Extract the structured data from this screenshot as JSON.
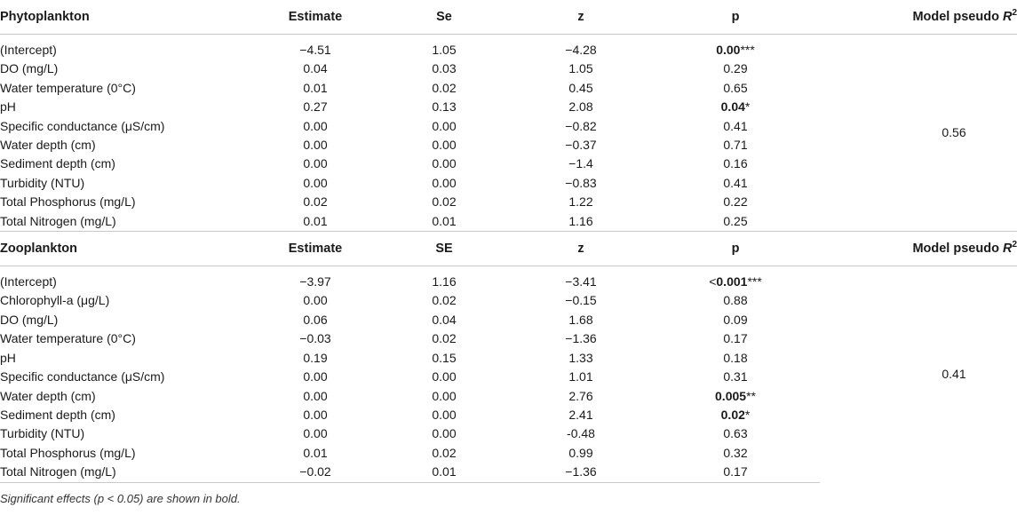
{
  "sections": [
    {
      "header": {
        "group": "Phytoplankton",
        "estimate": "Estimate",
        "se": "Se",
        "z": "z",
        "p": "p",
        "model": "Model pseudo ",
        "model_r": "R",
        "model_sup": "2"
      },
      "model_value": "0.56",
      "rows": [
        {
          "label": "(Intercept)",
          "estimate": "−4.51",
          "se": "1.05",
          "z": "−4.28",
          "p_bold": "0.00",
          "p_plain": "",
          "p_stars": "***"
        },
        {
          "label": "DO (mg/L)",
          "estimate": "0.04",
          "se": "0.03",
          "z": "1.05",
          "p_bold": "",
          "p_plain": "0.29",
          "p_stars": ""
        },
        {
          "label": "Water temperature (0°C)",
          "estimate": "0.01",
          "se": "0.02",
          "z": "0.45",
          "p_bold": "",
          "p_plain": "0.65",
          "p_stars": ""
        },
        {
          "label": "pH",
          "estimate": "0.27",
          "se": "0.13",
          "z": "2.08",
          "p_bold": "0.04",
          "p_plain": "",
          "p_stars": "*"
        },
        {
          "label": "Specific conductance (μS/cm)",
          "estimate": "0.00",
          "se": "0.00",
          "z": "−0.82",
          "p_bold": "",
          "p_plain": "0.41",
          "p_stars": ""
        },
        {
          "label": "Water depth (cm)",
          "estimate": "0.00",
          "se": "0.00",
          "z": "−0.37",
          "p_bold": "",
          "p_plain": "0.71",
          "p_stars": ""
        },
        {
          "label": "Sediment depth (cm)",
          "estimate": "0.00",
          "se": "0.00",
          "z": "−1.4",
          "p_bold": "",
          "p_plain": "0.16",
          "p_stars": ""
        },
        {
          "label": "Turbidity (NTU)",
          "estimate": "0.00",
          "se": "0.00",
          "z": "−0.83",
          "p_bold": "",
          "p_plain": "0.41",
          "p_stars": ""
        },
        {
          "label": "Total Phosphorus (mg/L)",
          "estimate": "0.02",
          "se": "0.02",
          "z": "1.22",
          "p_bold": "",
          "p_plain": "0.22",
          "p_stars": ""
        },
        {
          "label": "Total Nitrogen (mg/L)",
          "estimate": "0.01",
          "se": "0.01",
          "z": "1.16",
          "p_bold": "",
          "p_plain": "0.25",
          "p_stars": ""
        }
      ]
    },
    {
      "header": {
        "group": "Zooplankton",
        "estimate": "Estimate",
        "se": "SE",
        "z": "z",
        "p": "p",
        "model": "Model pseudo ",
        "model_r": "R",
        "model_sup": "2"
      },
      "model_value": "0.41",
      "rows": [
        {
          "label": "(Intercept)",
          "estimate": "−3.97",
          "se": "1.16",
          "z": "−3.41",
          "p_prefix": "<",
          "p_bold": "0.001",
          "p_plain": "",
          "p_stars": "***"
        },
        {
          "label": "Chlorophyll-a (μg/L)",
          "estimate": "0.00",
          "se": "0.02",
          "z": "−0.15",
          "p_bold": "",
          "p_plain": "0.88",
          "p_stars": ""
        },
        {
          "label": "DO (mg/L)",
          "estimate": "0.06",
          "se": "0.04",
          "z": "1.68",
          "p_bold": "",
          "p_plain": "0.09",
          "p_stars": ""
        },
        {
          "label": "Water temperature (0°C)",
          "estimate": "−0.03",
          "se": "0.02",
          "z": "−1.36",
          "p_bold": "",
          "p_plain": "0.17",
          "p_stars": ""
        },
        {
          "label": "pH",
          "estimate": "0.19",
          "se": "0.15",
          "z": "1.33",
          "p_bold": "",
          "p_plain": "0.18",
          "p_stars": ""
        },
        {
          "label": "Specific conductance (μS/cm)",
          "estimate": "0.00",
          "se": "0.00",
          "z": "1.01",
          "p_bold": "",
          "p_plain": "0.31",
          "p_stars": ""
        },
        {
          "label": "Water depth (cm)",
          "estimate": "0.00",
          "se": "0.00",
          "z": "2.76",
          "p_bold": "0.005",
          "p_plain": "",
          "p_stars": "**"
        },
        {
          "label": "Sediment depth (cm)",
          "estimate": "0.00",
          "se": "0.00",
          "z": "2.41",
          "p_bold": "0.02",
          "p_plain": "",
          "p_stars": "*"
        },
        {
          "label": "Turbidity (NTU)",
          "estimate": "0.00",
          "se": "0.00",
          "z": "-0.48",
          "p_bold": "",
          "p_plain": "0.63",
          "p_stars": ""
        },
        {
          "label": "Total Phosphorus (mg/L)",
          "estimate": "0.01",
          "se": "0.02",
          "z": "0.99",
          "p_bold": "",
          "p_plain": "0.32",
          "p_stars": ""
        },
        {
          "label": "Total Nitrogen (mg/L)",
          "estimate": "−0.02",
          "se": "0.01",
          "z": "−1.36",
          "p_bold": "",
          "p_plain": "0.17",
          "p_stars": ""
        }
      ]
    }
  ],
  "footnote": "Significant effects (p < 0.05) are shown in bold."
}
